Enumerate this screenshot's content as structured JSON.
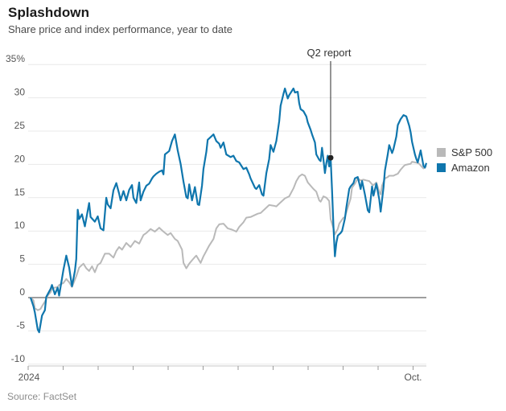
{
  "header": {
    "title": "Splashdown",
    "subtitle": "Share price and index performance, year to date"
  },
  "source": "Source: FactSet",
  "legend": {
    "items": [
      {
        "label": "S&P 500",
        "color": "#b9b9b9"
      },
      {
        "label": "Amazon",
        "color": "#0f76ad"
      }
    ]
  },
  "colors": {
    "amazon": "#0f76ad",
    "sp500": "#b9b9b9",
    "grid": "#e9e9e9",
    "zero_line": "#7f7f7f",
    "axis_line": "#c9c9c9",
    "tick": "#9a9a9a",
    "tick_label": "#555555",
    "annotation_line": "#4d4d4d",
    "annotation_dot": "#222222",
    "annotation_text": "#333333"
  },
  "chart_data": {
    "type": "line",
    "title": "Splashdown",
    "subtitle": "Share price and index performance, year to date",
    "y_unit": "%",
    "ylim": [
      -10,
      35
    ],
    "y_ticks": [
      -10,
      -5,
      0,
      5,
      10,
      15,
      20,
      25,
      30,
      35
    ],
    "y_top_tick_label": "35%",
    "x_unit": "day of 2024 (0 = Jan 1)",
    "x_range_days": [
      0,
      277
    ],
    "x_left_label": "2024",
    "x_right_label": "Oct.",
    "x_month_tick_count": 12,
    "grid": true,
    "legend_position": "right",
    "annotations": [
      {
        "label": "Q2 report",
        "day": 210,
        "value": 21.0,
        "marker": "vline+dot"
      }
    ],
    "series": [
      {
        "name": "S&P 500",
        "color": "#b9b9b9",
        "points": [
          [
            0,
            0
          ],
          [
            2,
            -0.4
          ],
          [
            3,
            -1.6
          ],
          [
            5,
            -1.9
          ],
          [
            7,
            -1.7
          ],
          [
            8,
            -1.3
          ],
          [
            10,
            -0.6
          ],
          [
            12,
            0.3
          ],
          [
            14,
            0.8
          ],
          [
            15,
            1.4
          ],
          [
            17,
            1.5
          ],
          [
            19,
            1.6
          ],
          [
            20,
            1.9
          ],
          [
            23,
            2.2
          ],
          [
            25,
            2.8
          ],
          [
            27,
            2.3
          ],
          [
            29,
            1.6
          ],
          [
            32,
            3.2
          ],
          [
            34,
            4.5
          ],
          [
            37,
            5.1
          ],
          [
            39,
            4.4
          ],
          [
            41,
            4.0
          ],
          [
            43,
            4.7
          ],
          [
            45,
            3.8
          ],
          [
            47,
            4.9
          ],
          [
            49,
            5.2
          ],
          [
            52,
            6.6
          ],
          [
            55,
            6.6
          ],
          [
            58,
            6.0
          ],
          [
            60,
            7.0
          ],
          [
            62,
            7.6
          ],
          [
            64,
            7.2
          ],
          [
            67,
            8.2
          ],
          [
            70,
            7.6
          ],
          [
            73,
            8.5
          ],
          [
            76,
            8.1
          ],
          [
            79,
            9.4
          ],
          [
            81,
            9.7
          ],
          [
            84,
            10.3
          ],
          [
            87,
            9.9
          ],
          [
            90,
            10.5
          ],
          [
            93,
            9.9
          ],
          [
            96,
            9.4
          ],
          [
            98,
            9.7
          ],
          [
            101,
            8.8
          ],
          [
            103,
            8.5
          ],
          [
            106,
            7.2
          ],
          [
            107,
            5.2
          ],
          [
            109,
            4.4
          ],
          [
            111,
            5.1
          ],
          [
            113,
            5.6
          ],
          [
            115,
            6.1
          ],
          [
            116,
            6.3
          ],
          [
            119,
            5.2
          ],
          [
            121,
            6.2
          ],
          [
            123,
            7.0
          ],
          [
            125,
            7.8
          ],
          [
            128,
            8.8
          ],
          [
            130,
            10.4
          ],
          [
            132,
            11.0
          ],
          [
            135,
            11.1
          ],
          [
            138,
            10.4
          ],
          [
            141,
            10.2
          ],
          [
            144,
            9.9
          ],
          [
            146,
            10.6
          ],
          [
            149,
            11.3
          ],
          [
            151,
            12.0
          ],
          [
            154,
            12.1
          ],
          [
            157,
            12.4
          ],
          [
            159,
            12.6
          ],
          [
            161,
            12.7
          ],
          [
            164,
            13.3
          ],
          [
            167,
            13.9
          ],
          [
            170,
            13.8
          ],
          [
            172,
            13.7
          ],
          [
            175,
            14.3
          ],
          [
            178,
            14.9
          ],
          [
            181,
            15.2
          ],
          [
            184,
            16.4
          ],
          [
            186,
            17.5
          ],
          [
            188,
            18.2
          ],
          [
            190,
            18.5
          ],
          [
            192,
            18.3
          ],
          [
            194,
            17.3
          ],
          [
            196,
            16.8
          ],
          [
            198,
            16.3
          ],
          [
            200,
            15.9
          ],
          [
            202,
            14.6
          ],
          [
            203,
            14.4
          ],
          [
            205,
            15.2
          ],
          [
            207,
            15.0
          ],
          [
            209,
            14.5
          ],
          [
            210,
            11.8
          ],
          [
            212,
            10.4
          ],
          [
            213,
            9.5
          ],
          [
            215,
            10.3
          ],
          [
            216,
            11.1
          ],
          [
            218,
            11.7
          ],
          [
            219,
            12.0
          ],
          [
            220,
            12.1
          ],
          [
            222,
            13.5
          ],
          [
            224,
            14.9
          ],
          [
            225,
            16.5
          ],
          [
            227,
            17.1
          ],
          [
            229,
            17.9
          ],
          [
            231,
            17.6
          ],
          [
            233,
            17.7
          ],
          [
            235,
            17.6
          ],
          [
            237,
            17.5
          ],
          [
            239,
            17.0
          ],
          [
            240,
            16.9
          ],
          [
            242,
            17.3
          ],
          [
            244,
            15.9
          ],
          [
            245,
            15.5
          ],
          [
            246,
            16.8
          ],
          [
            248,
            17.9
          ],
          [
            250,
            18.1
          ],
          [
            251,
            18.3
          ],
          [
            254,
            18.3
          ],
          [
            255,
            18.4
          ],
          [
            257,
            18.6
          ],
          [
            259,
            19.2
          ],
          [
            261,
            19.7
          ],
          [
            262,
            19.9
          ],
          [
            264,
            20.0
          ],
          [
            266,
            20.1
          ],
          [
            267,
            20.4
          ],
          [
            269,
            20.3
          ],
          [
            271,
            20.2
          ],
          [
            272,
            20.1
          ],
          [
            274,
            19.6
          ],
          [
            275,
            19.4
          ],
          [
            277,
            19.8
          ]
        ]
      },
      {
        "name": "Amazon",
        "color": "#0f76ad",
        "points": [
          [
            0,
            0
          ],
          [
            2,
            -1.3
          ],
          [
            3,
            -2.2
          ],
          [
            5,
            -4.8
          ],
          [
            6,
            -5.2
          ],
          [
            8,
            -2.7
          ],
          [
            10,
            -1.9
          ],
          [
            11,
            0.1
          ],
          [
            14,
            1.3
          ],
          [
            15,
            1.9
          ],
          [
            17,
            0.5
          ],
          [
            19,
            1.5
          ],
          [
            20,
            0.3
          ],
          [
            23,
            4.2
          ],
          [
            25,
            6.3
          ],
          [
            27,
            4.5
          ],
          [
            28,
            3.1
          ],
          [
            29,
            1.7
          ],
          [
            31,
            4.0
          ],
          [
            32,
            5.8
          ],
          [
            33,
            13.2
          ],
          [
            34,
            11.8
          ],
          [
            36,
            12.5
          ],
          [
            38,
            10.7
          ],
          [
            41,
            14.2
          ],
          [
            42,
            12.1
          ],
          [
            45,
            11.4
          ],
          [
            47,
            12.2
          ],
          [
            49,
            10.4
          ],
          [
            51,
            10.1
          ],
          [
            53,
            15.0
          ],
          [
            54,
            14.0
          ],
          [
            56,
            13.4
          ],
          [
            58,
            16.1
          ],
          [
            60,
            17.2
          ],
          [
            62,
            15.6
          ],
          [
            63,
            14.6
          ],
          [
            65,
            16.0
          ],
          [
            67,
            14.6
          ],
          [
            69,
            16.2
          ],
          [
            71,
            16.9
          ],
          [
            72,
            15.0
          ],
          [
            74,
            14.2
          ],
          [
            76,
            17.3
          ],
          [
            77,
            14.6
          ],
          [
            79,
            15.9
          ],
          [
            81,
            16.8
          ],
          [
            83,
            17.1
          ],
          [
            85,
            17.9
          ],
          [
            86,
            18.2
          ],
          [
            88,
            18.6
          ],
          [
            90,
            18.9
          ],
          [
            92,
            19.1
          ],
          [
            93,
            18.5
          ],
          [
            94,
            21.5
          ],
          [
            97,
            22.0
          ],
          [
            99,
            23.5
          ],
          [
            101,
            24.5
          ],
          [
            103,
            22.1
          ],
          [
            105,
            20.1
          ],
          [
            107,
            17.4
          ],
          [
            109,
            15.1
          ],
          [
            110,
            14.9
          ],
          [
            111,
            17.0
          ],
          [
            113,
            14.6
          ],
          [
            115,
            16.6
          ],
          [
            117,
            14.0
          ],
          [
            118,
            13.9
          ],
          [
            120,
            16.8
          ],
          [
            121,
            19.3
          ],
          [
            123,
            21.9
          ],
          [
            124,
            23.7
          ],
          [
            127,
            24.3
          ],
          [
            128,
            24.5
          ],
          [
            130,
            23.5
          ],
          [
            132,
            23.1
          ],
          [
            133,
            22.5
          ],
          [
            135,
            23.3
          ],
          [
            137,
            21.5
          ],
          [
            140,
            21.1
          ],
          [
            142,
            21.3
          ],
          [
            144,
            20.5
          ],
          [
            146,
            20.3
          ],
          [
            149,
            19.3
          ],
          [
            151,
            19.5
          ],
          [
            153,
            18.5
          ],
          [
            154,
            17.9
          ],
          [
            157,
            16.5
          ],
          [
            158,
            16.3
          ],
          [
            160,
            16.9
          ],
          [
            162,
            15.5
          ],
          [
            163,
            15.3
          ],
          [
            165,
            18.7
          ],
          [
            167,
            20.8
          ],
          [
            168,
            22.9
          ],
          [
            170,
            21.9
          ],
          [
            172,
            23.5
          ],
          [
            174,
            26.5
          ],
          [
            175,
            28.8
          ],
          [
            177,
            30.6
          ],
          [
            178,
            31.4
          ],
          [
            180,
            29.9
          ],
          [
            181,
            30.4
          ],
          [
            184,
            31.4
          ],
          [
            185,
            30.8
          ],
          [
            187,
            30.9
          ],
          [
            188,
            29.2
          ],
          [
            189,
            28.3
          ],
          [
            191,
            28.0
          ],
          [
            193,
            27.2
          ],
          [
            194,
            26.3
          ],
          [
            196,
            25.2
          ],
          [
            197,
            24.5
          ],
          [
            199,
            23.3
          ],
          [
            200,
            21.5
          ],
          [
            202,
            20.7
          ],
          [
            203,
            20.5
          ],
          [
            204,
            22.5
          ],
          [
            205,
            20.7
          ],
          [
            206,
            18.7
          ],
          [
            207,
            20.2
          ],
          [
            208,
            21.3
          ],
          [
            209,
            19.7
          ],
          [
            210,
            21.0
          ],
          [
            211,
            16.0
          ],
          [
            212,
            10.7
          ],
          [
            213,
            6.2
          ],
          [
            214,
            8.2
          ],
          [
            215,
            9.3
          ],
          [
            217,
            9.7
          ],
          [
            218,
            10.0
          ],
          [
            220,
            11.9
          ],
          [
            221,
            13.5
          ],
          [
            223,
            16.3
          ],
          [
            224,
            16.7
          ],
          [
            226,
            17.2
          ],
          [
            227,
            17.9
          ],
          [
            229,
            18.1
          ],
          [
            231,
            16.3
          ],
          [
            232,
            17.5
          ],
          [
            234,
            15.5
          ],
          [
            236,
            13.1
          ],
          [
            237,
            12.8
          ],
          [
            239,
            16.7
          ],
          [
            240,
            15.3
          ],
          [
            242,
            17.1
          ],
          [
            244,
            14.8
          ],
          [
            245,
            12.9
          ],
          [
            247,
            16.5
          ],
          [
            248,
            19.1
          ],
          [
            250,
            21.5
          ],
          [
            251,
            22.9
          ],
          [
            253,
            21.7
          ],
          [
            254,
            22.3
          ],
          [
            256,
            24.2
          ],
          [
            257,
            25.9
          ],
          [
            259,
            26.8
          ],
          [
            261,
            27.4
          ],
          [
            263,
            27.2
          ],
          [
            265,
            25.8
          ],
          [
            266,
            24.8
          ],
          [
            267,
            23.4
          ],
          [
            269,
            21.5
          ],
          [
            270,
            20.8
          ],
          [
            271,
            20.3
          ],
          [
            273,
            22.1
          ],
          [
            275,
            19.8
          ],
          [
            276,
            19.5
          ],
          [
            277,
            20.2
          ]
        ]
      }
    ]
  }
}
